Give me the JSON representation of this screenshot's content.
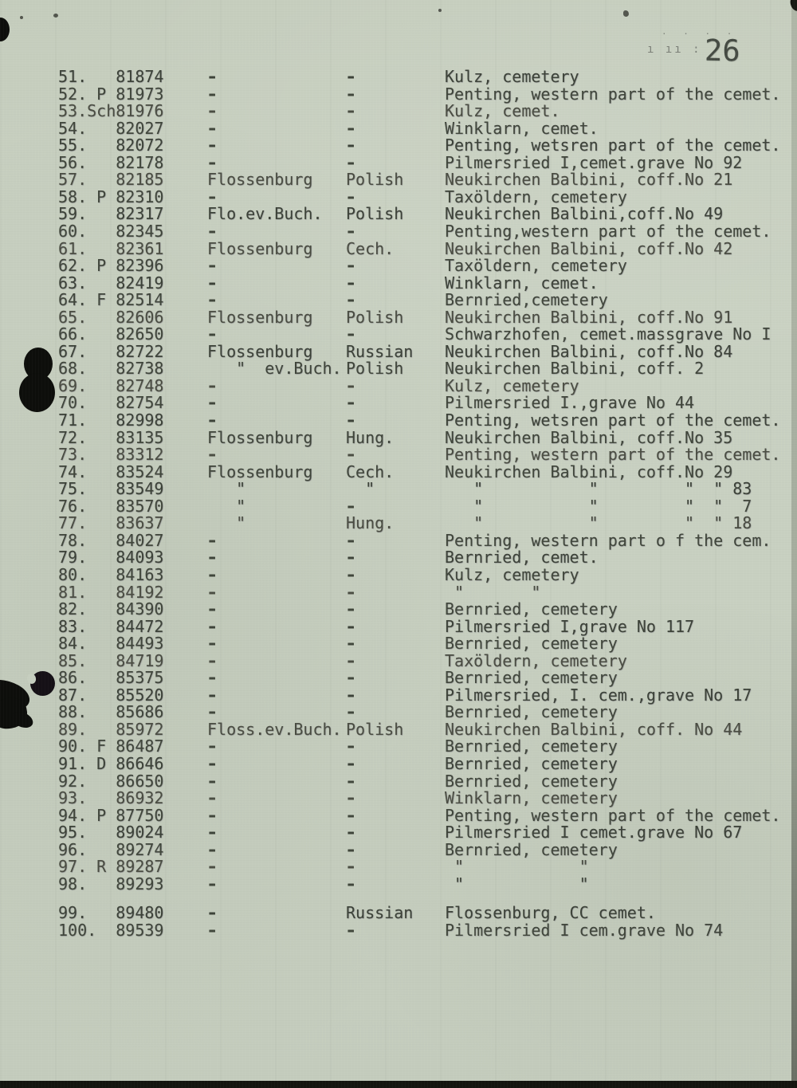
{
  "document": {
    "page_number": "26",
    "header_marks": {
      "dots": ". . . .",
      "strokes": "ı ıı :"
    },
    "rows": [
      {
        "c1": "51.   81874",
        "camp": "-",
        "nat": "-",
        "loc": "Kulz, cemetery"
      },
      {
        "c1": "52. P 81973",
        "camp": "-",
        "nat": "-",
        "loc": "Penting, western part of the cemet."
      },
      {
        "c1": "53.Sch81976",
        "camp": "-",
        "nat": "-",
        "loc": "Kulz, cemet."
      },
      {
        "c1": "54.   82027",
        "camp": "-",
        "nat": "-",
        "loc": "Winklarn, cemet."
      },
      {
        "c1": "55.   82072",
        "camp": "-",
        "nat": "-",
        "loc": "Penting, wetsren part of the cemet."
      },
      {
        "c1": "56.   82178",
        "camp": "-",
        "nat": "-",
        "loc": "Pilmersried I,cemet.grave No 92"
      },
      {
        "c1": "57.   82185",
        "camp": "Flossenburg",
        "nat": "Polish",
        "loc": "Neukirchen Balbini, coff.No 21"
      },
      {
        "c1": "58. P 82310",
        "camp": "-",
        "nat": "-",
        "loc": "Taxöldern, cemetery"
      },
      {
        "c1": "59.   82317",
        "camp": "Flo.ev.Buch.",
        "nat": "Polish",
        "loc": "Neukirchen Balbini,coff.No 49"
      },
      {
        "c1": "60.   82345",
        "camp": "-",
        "nat": "-",
        "loc": "Penting,western part of the cemet."
      },
      {
        "c1": "61.   82361",
        "camp": "Flossenburg",
        "nat": "Cech.",
        "loc": "Neukirchen Balbini, coff.No 42"
      },
      {
        "c1": "62. P 82396",
        "camp": "-",
        "nat": "-",
        "loc": "Taxöldern, cemetery"
      },
      {
        "c1": "63.   82419",
        "camp": "-",
        "nat": "-",
        "loc": "Winklarn, cemet."
      },
      {
        "c1": "64. F 82514",
        "camp": "-",
        "nat": "-",
        "loc": "Bernried,cemetery"
      },
      {
        "c1": "65.   82606",
        "camp": "Flossenburg",
        "nat": "Polish",
        "loc": "Neukirchen Balbini, coff.No 91"
      },
      {
        "c1": "66.   82650",
        "camp": "-",
        "nat": "-",
        "loc": "Schwarzhofen, cemet.massgrave No I"
      },
      {
        "c1": "67.   82722",
        "camp": "Flossenburg",
        "nat": "Russian",
        "loc": "Neukirchen Balbini, coff.No 84"
      },
      {
        "c1": "68.   82738",
        "camp": "   \"  ev.Buch.",
        "nat": "Polish",
        "loc": "Neukirchen Balbini, coff. 2"
      },
      {
        "c1": "69.   82748",
        "camp": "-",
        "nat": "-",
        "loc": "Kulz, cemetery"
      },
      {
        "c1": "70.   82754",
        "camp": "-",
        "nat": "-",
        "loc": "Pilmersried I.,grave No 44"
      },
      {
        "c1": "71.   82998",
        "camp": "-",
        "nat": "-",
        "loc": "Penting, wetsren part of the cemet."
      },
      {
        "c1": "72.   83135",
        "camp": "Flossenburg",
        "nat": "Hung.",
        "loc": "Neukirchen Balbini, coff.No 35"
      },
      {
        "c1": "73.   83312",
        "camp": "-",
        "nat": "-",
        "loc": "Penting, western part of the cemet."
      },
      {
        "c1": "74.   83524",
        "camp": "Flossenburg",
        "nat": "Cech.",
        "loc": "Neukirchen Balbini, coff.No 29"
      },
      {
        "c1": "75.   83549",
        "camp": "   \"",
        "nat": "  \"",
        "loc": "   \"           \"         \"  \" 83"
      },
      {
        "c1": "76.   83570",
        "camp": "   \"",
        "nat": "-",
        "loc": "   \"           \"         \"  \"  7"
      },
      {
        "c1": "77.   83637",
        "camp": "   \"",
        "nat": "Hung.",
        "loc": "   \"           \"         \"  \" 18"
      },
      {
        "c1": "78.   84027",
        "camp": "-",
        "nat": "-",
        "loc": "Penting, western part o f the cem."
      },
      {
        "c1": "79.   84093",
        "camp": "-",
        "nat": "-",
        "loc": "Bernried, cemet."
      },
      {
        "c1": "80.   84163",
        "camp": "-",
        "nat": "-",
        "loc": "Kulz, cemetery"
      },
      {
        "c1": "81.   84192",
        "camp": "-",
        "nat": "-",
        "loc": " \"       \""
      },
      {
        "c1": "82.   84390",
        "camp": "-",
        "nat": "-",
        "loc": "Bernried, cemetery"
      },
      {
        "c1": "83.   84472",
        "camp": "-",
        "nat": "-",
        "loc": "Pilmersried I,grave No 117"
      },
      {
        "c1": "84.   84493",
        "camp": "-",
        "nat": "-",
        "loc": "Bernried, cemetery"
      },
      {
        "c1": "85.   84719",
        "camp": "-",
        "nat": "-",
        "loc": "Taxöldern, cemetery"
      },
      {
        "c1": "86.   85375",
        "camp": "-",
        "nat": "-",
        "loc": "Bernried, cemetery"
      },
      {
        "c1": "87.   85520",
        "camp": "-",
        "nat": "-",
        "loc": "Pilmersried, I. cem.,grave No 17"
      },
      {
        "c1": "88.   85686",
        "camp": "-",
        "nat": "-",
        "loc": "Bernried, cemetery"
      },
      {
        "c1": "89.   85972",
        "camp": "Floss.ev.Buch.",
        "nat": "Polish",
        "loc": "Neukirchen Balbini, coff. No 44"
      },
      {
        "c1": "90. F 86487",
        "camp": "-",
        "nat": "-",
        "loc": "Bernried, cemetery"
      },
      {
        "c1": "91. D 86646",
        "camp": "-",
        "nat": "-",
        "loc": "Bernried, cemetery"
      },
      {
        "c1": "92.   86650",
        "camp": "-",
        "nat": "-",
        "loc": "Bernried, cemetery"
      },
      {
        "c1": "93.   86932",
        "camp": "-",
        "nat": "-",
        "loc": "Winklarn, cemetery"
      },
      {
        "c1": "94. P 87750",
        "camp": "-",
        "nat": "-",
        "loc": "Penting, western part of the cemet."
      },
      {
        "c1": "95.   89024",
        "camp": "-",
        "nat": "-",
        "loc": "Pilmersried I cemet.grave No 67"
      },
      {
        "c1": "96.   89274",
        "camp": "-",
        "nat": "-",
        "loc": "Bernried, cemetery"
      },
      {
        "c1": "97. R 89287",
        "camp": "-",
        "nat": "-",
        "loc": " \"            \""
      },
      {
        "c1": "98.   89293",
        "camp": "-",
        "nat": "-",
        "loc": " \"            \""
      },
      {
        "c1": "99.   89480",
        "camp": "-",
        "nat": "Russian",
        "loc": "Flossenburg, CC cemet."
      },
      {
        "c1": "100.  89539",
        "camp": "-",
        "nat": "-",
        "loc": "Pilmersried I cem.grave No 74"
      }
    ]
  },
  "colors": {
    "paper": "#c8cfc0",
    "ink": "#40463b",
    "scan_edge": "#14150f"
  }
}
